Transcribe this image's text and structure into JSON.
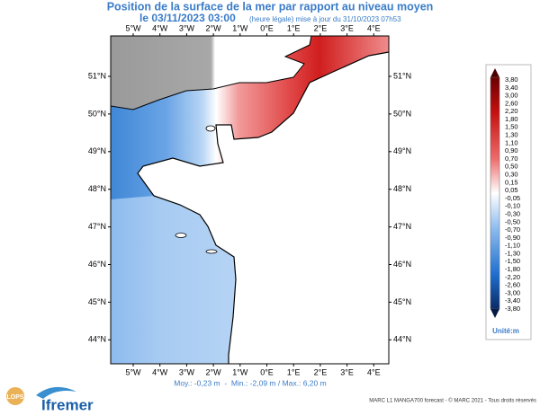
{
  "title": "Position de la surface de la mer par rapport au niveau moyen",
  "subtitle": {
    "date": "le 03/11/2023 03:00",
    "note": "(heure légale) mise à jour du 31/10/2023 07h53"
  },
  "lon_labels": [
    "5°W",
    "4°W",
    "3°W",
    "2°W",
    "1°W",
    "0°E",
    "1°E",
    "2°E",
    "3°E",
    "4°E"
  ],
  "lat_labels": [
    "51°N",
    "50°N",
    "49°N",
    "48°N",
    "47°N",
    "46°N",
    "45°N",
    "44°N"
  ],
  "colorbar": {
    "labels": [
      "3,80",
      "3,40",
      "3,00",
      "2,60",
      "2,20",
      "1,80",
      "1,50",
      "1,30",
      "1,10",
      "0,90",
      "0,70",
      "0,50",
      "0,30",
      "0,15",
      "0,05",
      "-0,05",
      "-0,10",
      "-0,30",
      "-0,50",
      "-0,70",
      "-0,90",
      "-1,10",
      "-1,30",
      "-1,50",
      "-1,80",
      "-2,20",
      "-2,60",
      "-3,00",
      "-3,40",
      "-3,80"
    ],
    "unit": "Unité:m"
  },
  "stats": "Moy.: -0,23 m  -  Min.: -2,09 m / Max.: 6,20 m",
  "footer": "MARC L1 MANGA700 forecast - © MARC 2021 - Tous droits réservés",
  "logos": [
    "LOPS",
    "Ifremer"
  ]
}
